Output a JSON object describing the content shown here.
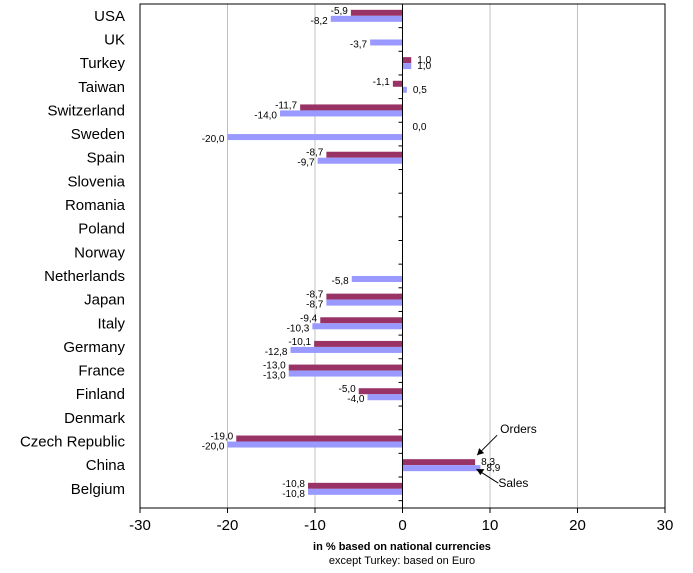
{
  "chart_data": {
    "type": "bar",
    "orientation": "horizontal",
    "categories": [
      "USA",
      "UK",
      "Turkey",
      "Taiwan",
      "Switzerland",
      "Sweden",
      "Spain",
      "Slovenia",
      "Romania",
      "Poland",
      "Norway",
      "Netherlands",
      "Japan",
      "Italy",
      "Germany",
      "France",
      "Finland",
      "Denmark",
      "Czech Republic",
      "China",
      "Belgium"
    ],
    "series": [
      {
        "name": "Orders",
        "color": "#993366",
        "values": [
          -5.9,
          null,
          1.0,
          -1.1,
          -11.7,
          null,
          -8.7,
          null,
          null,
          null,
          null,
          null,
          -8.7,
          -9.4,
          -10.1,
          -13.0,
          -5.0,
          null,
          -19.0,
          8.3,
          -10.8
        ],
        "labels": [
          "-5,9",
          "",
          "1,0",
          "-1,1",
          "-11,7",
          "",
          "-8,7",
          "",
          "",
          "",
          "",
          "",
          "-8,7",
          "-9,4",
          "-10,1",
          "-13,0",
          "-5,0",
          "",
          "-19,0",
          "8,3",
          "-10,8"
        ]
      },
      {
        "name": "Sales",
        "color": "#9999ff",
        "values": [
          -8.2,
          -3.7,
          1.0,
          0.5,
          -14.0,
          -20.0,
          -9.7,
          null,
          null,
          null,
          null,
          -5.8,
          -8.7,
          -10.3,
          -12.8,
          -13.0,
          -4.0,
          null,
          -20.0,
          8.9,
          -10.8
        ],
        "labels": [
          "-8,2",
          "-3,7",
          "1,0",
          "0,5",
          "-14,0",
          "-20,0",
          "-9,7",
          "",
          "",
          "",
          "",
          "-5,8",
          "-8,7",
          "-10,3",
          "-12,8",
          "-13,0",
          "-4,0",
          "",
          "-20,0",
          "8,9",
          "-10,8"
        ]
      }
    ],
    "extra_labels": [
      {
        "category": "Sweden",
        "text": "0,0"
      }
    ],
    "xlim": [
      -30,
      30
    ],
    "xticks": [
      -30,
      -20,
      -10,
      0,
      10,
      20,
      30
    ],
    "xlabel": "in % based on national currencies",
    "xlabel_sub": "except Turkey: based on Euro",
    "grid": "vertical",
    "annotations": [
      {
        "text": "Orders",
        "target": "China Orders"
      },
      {
        "text": "Sales",
        "target": "China Sales"
      }
    ]
  }
}
